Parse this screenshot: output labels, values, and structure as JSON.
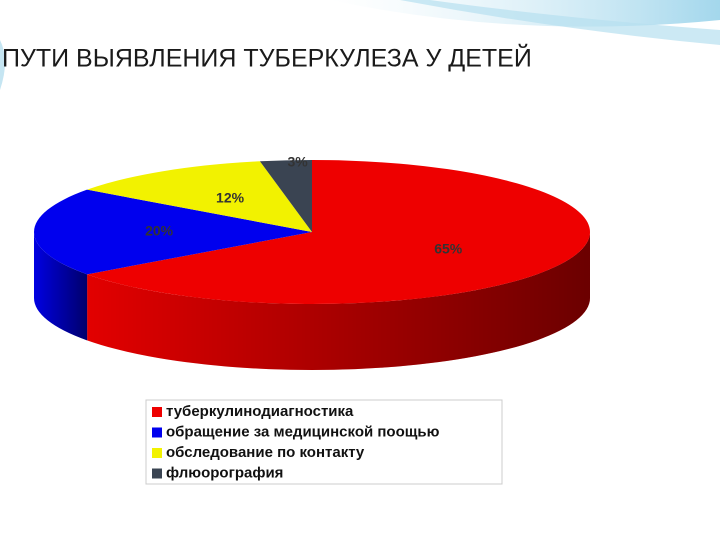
{
  "chart_data": {
    "type": "pie3d",
    "title": "ПУТИ ВЫЯВЛЕНИЯ ТУБЕРКУЛЕЗА У ДЕТЕЙ",
    "categories": [
      "туберкулинодиагностика",
      "обращение за медицинской поощью",
      "обследование по контакту",
      "флюорография"
    ],
    "values": [
      65,
      20,
      12,
      3
    ],
    "value_labels": [
      "65%",
      "20%",
      "12%",
      "3%"
    ],
    "colors": [
      "#ee0000",
      "#0000ee",
      "#f2f200",
      "#3a4452"
    ]
  }
}
